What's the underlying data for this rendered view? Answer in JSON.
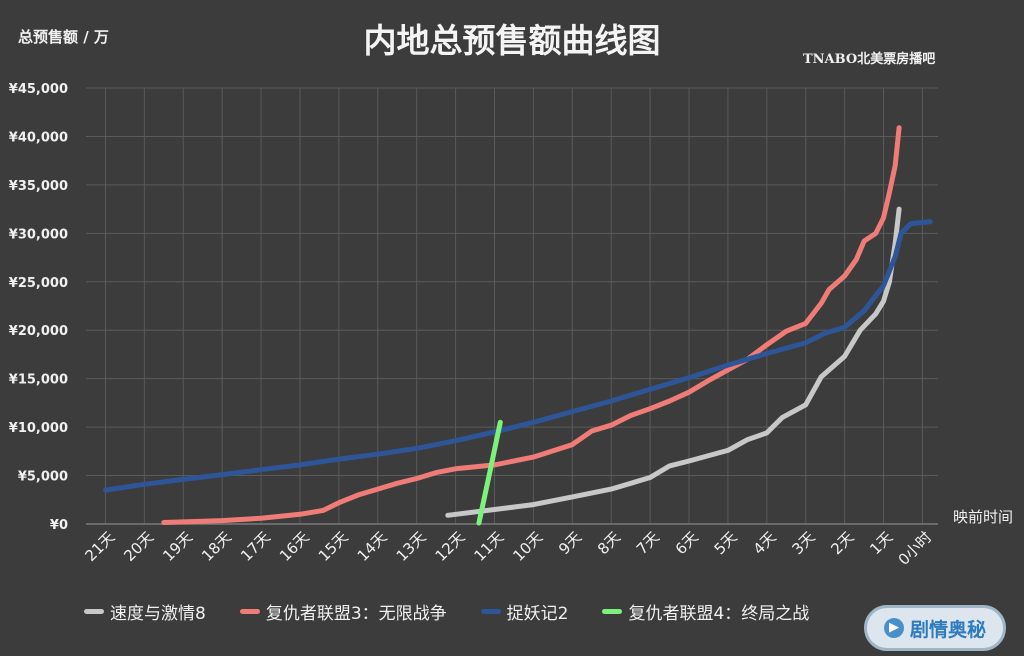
{
  "title": "内地总预售额曲线图",
  "unit_label": "总预售额 / 万",
  "watermark": "TNABO北美票房播吧",
  "badge": {
    "text": "剧情奥秘",
    "icon": "play-icon"
  },
  "chart_data": {
    "type": "line",
    "title": "内地总预售额曲线图",
    "ylabel": "总预售额 / 万",
    "xlabel": "映前时间",
    "ylim": [
      0,
      45000
    ],
    "yticks": [
      0,
      5000,
      10000,
      15000,
      20000,
      25000,
      30000,
      35000,
      40000,
      45000
    ],
    "ytick_labels": [
      "¥0",
      "¥5,000",
      "¥10,000",
      "¥15,000",
      "¥20,000",
      "¥25,000",
      "¥30,000",
      "¥35,000",
      "¥40,000",
      "¥45,000"
    ],
    "xlim": [
      21.5,
      -0.4
    ],
    "xticks": [
      21,
      20,
      19,
      18,
      17,
      16,
      15,
      14,
      13,
      12,
      11,
      10,
      9,
      8,
      7,
      6,
      5,
      4,
      3,
      2,
      1,
      0
    ],
    "xtick_labels": [
      "21天",
      "20天",
      "19天",
      "18天",
      "17天",
      "16天",
      "15天",
      "14天",
      "13天",
      "12天",
      "11天",
      "10天",
      "9天",
      "8天",
      "7天",
      "6天",
      "5天",
      "4天",
      "3天",
      "2天",
      "1天",
      "0小时"
    ],
    "grid": true,
    "legend_position": "bottom",
    "series": [
      {
        "name": "速度与激情8",
        "color": "#c8c8c8",
        "points": [
          [
            12.2,
            900
          ],
          [
            11.0,
            1500
          ],
          [
            10.0,
            2000
          ],
          [
            9.0,
            2800
          ],
          [
            8.0,
            3600
          ],
          [
            7.0,
            4800
          ],
          [
            6.5,
            6000
          ],
          [
            6.0,
            6500
          ],
          [
            5.0,
            7600
          ],
          [
            4.5,
            8700
          ],
          [
            4.0,
            9400
          ],
          [
            3.6,
            11000
          ],
          [
            3.0,
            12300
          ],
          [
            2.6,
            15200
          ],
          [
            2.0,
            17300
          ],
          [
            1.6,
            20000
          ],
          [
            1.2,
            21700
          ],
          [
            1.0,
            23000
          ],
          [
            0.85,
            25000
          ],
          [
            0.7,
            29000
          ],
          [
            0.6,
            32500
          ]
        ]
      },
      {
        "name": "复仇者联盟3：无限战争",
        "color": "#f07c78",
        "points": [
          [
            19.5,
            150
          ],
          [
            18.0,
            350
          ],
          [
            17.0,
            600
          ],
          [
            16.0,
            1000
          ],
          [
            15.4,
            1400
          ],
          [
            15.0,
            2200
          ],
          [
            14.5,
            3000
          ],
          [
            14.0,
            3600
          ],
          [
            13.5,
            4200
          ],
          [
            13.0,
            4700
          ],
          [
            12.5,
            5300
          ],
          [
            12.0,
            5700
          ],
          [
            11.0,
            6100
          ],
          [
            10.0,
            6900
          ],
          [
            9.0,
            8200
          ],
          [
            8.5,
            9600
          ],
          [
            8.0,
            10200
          ],
          [
            7.5,
            11200
          ],
          [
            7.0,
            11900
          ],
          [
            6.5,
            12700
          ],
          [
            6.0,
            13600
          ],
          [
            5.5,
            14800
          ],
          [
            5.0,
            15900
          ],
          [
            4.5,
            17000
          ],
          [
            4.0,
            18500
          ],
          [
            3.5,
            19900
          ],
          [
            3.0,
            20700
          ],
          [
            2.6,
            22800
          ],
          [
            2.4,
            24200
          ],
          [
            2.0,
            25600
          ],
          [
            1.7,
            27300
          ],
          [
            1.5,
            29200
          ],
          [
            1.2,
            30000
          ],
          [
            1.0,
            31600
          ],
          [
            0.85,
            34200
          ],
          [
            0.7,
            37000
          ],
          [
            0.6,
            40900
          ]
        ]
      },
      {
        "name": "捉妖记2",
        "color": "#2e5597",
        "points": [
          [
            21.0,
            3500
          ],
          [
            20.0,
            4100
          ],
          [
            19.0,
            4600
          ],
          [
            18.0,
            5100
          ],
          [
            17.0,
            5600
          ],
          [
            16.0,
            6100
          ],
          [
            15.0,
            6700
          ],
          [
            14.0,
            7200
          ],
          [
            13.0,
            7800
          ],
          [
            12.0,
            8600
          ],
          [
            11.0,
            9500
          ],
          [
            10.0,
            10500
          ],
          [
            9.0,
            11600
          ],
          [
            8.0,
            12700
          ],
          [
            7.0,
            13900
          ],
          [
            6.0,
            15100
          ],
          [
            5.0,
            16400
          ],
          [
            4.0,
            17600
          ],
          [
            3.0,
            18700
          ],
          [
            2.5,
            19700
          ],
          [
            2.0,
            20300
          ],
          [
            1.5,
            22000
          ],
          [
            1.0,
            24600
          ],
          [
            0.7,
            27600
          ],
          [
            0.55,
            30000
          ],
          [
            0.3,
            31000
          ],
          [
            -0.2,
            31200
          ]
        ]
      },
      {
        "name": "复仇者联盟4：终局之战",
        "color": "#7cf27c",
        "points": [
          [
            11.4,
            100
          ],
          [
            11.15,
            4800
          ],
          [
            10.95,
            8600
          ],
          [
            10.85,
            10500
          ]
        ]
      }
    ]
  }
}
